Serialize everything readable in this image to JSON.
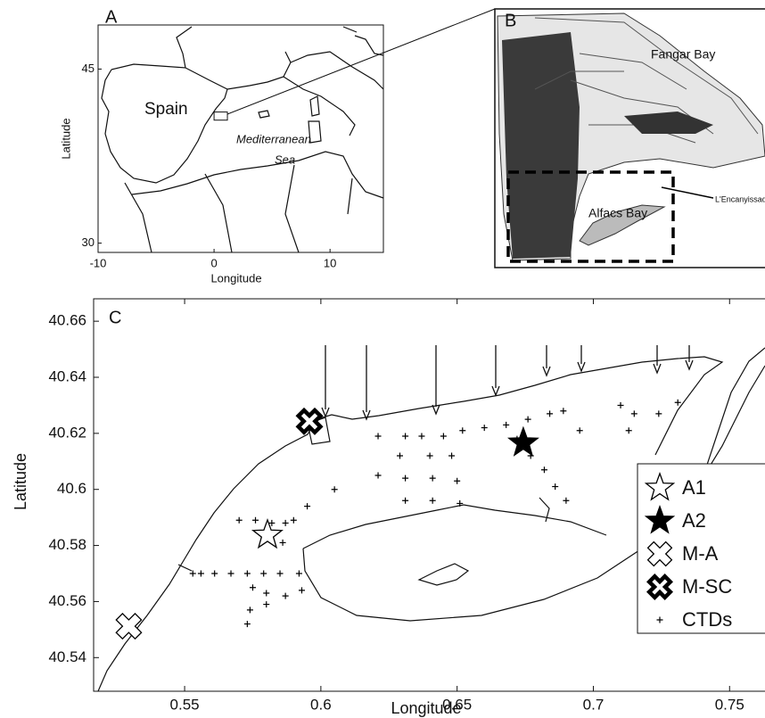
{
  "chart_data": [
    {
      "type": "map",
      "label": "A",
      "xlabel": "Longitude",
      "ylabel": "Latitude",
      "xlim": [
        -10,
        14.6
      ],
      "ylim": [
        29.2,
        48.8
      ],
      "xticks": [
        -10,
        0,
        10
      ],
      "yticks": [
        30,
        45
      ],
      "annotations": [
        "Spain",
        "Mediterranean",
        "Sea"
      ],
      "inset_box": {
        "x": [
          0,
          1.15
        ],
        "y": [
          40.6,
          41.3
        ]
      }
    },
    {
      "type": "scatter",
      "label": "C",
      "xlabel": "Longitude",
      "ylabel": "Latitude",
      "xlim": [
        0.5166,
        0.763
      ],
      "ylim": [
        40.528,
        40.668
      ],
      "xticks": [
        0.55,
        0.6,
        0.65,
        0.7,
        0.75
      ],
      "yticks": [
        40.54,
        40.56,
        40.58,
        40.6,
        40.62,
        40.64,
        40.66
      ],
      "series": [
        {
          "name": "A1",
          "marker": "star",
          "color": "#ffffff",
          "x": [
            0.5804
          ],
          "y": [
            40.5837
          ]
        },
        {
          "name": "A2",
          "marker": "star",
          "color": "#000000",
          "x": [
            0.6743
          ],
          "y": [
            40.6166
          ]
        },
        {
          "name": "M-A",
          "marker": "cross",
          "color": "#ffffff",
          "x": [
            0.5295
          ],
          "y": [
            40.5512
          ]
        },
        {
          "name": "M-SC",
          "marker": "bold-cross",
          "color": "#ffffff",
          "x": [
            0.5958
          ],
          "y": [
            40.6243
          ]
        },
        {
          "name": "CTDs",
          "marker": "plus",
          "color": "#000000",
          "x": [
            0.621,
            0.631,
            0.637,
            0.645,
            0.652,
            0.66,
            0.668,
            0.676,
            0.684,
            0.689,
            0.71,
            0.715,
            0.724,
            0.731,
            0.695,
            0.713,
            0.629,
            0.64,
            0.648,
            0.631,
            0.641,
            0.65,
            0.631,
            0.641,
            0.651,
            0.672,
            0.677,
            0.682,
            0.686,
            0.69,
            0.621,
            0.605,
            0.595,
            0.587,
            0.57,
            0.576,
            0.582,
            0.59,
            0.586,
            0.553,
            0.556,
            0.561,
            0.567,
            0.573,
            0.579,
            0.585,
            0.592,
            0.575,
            0.58,
            0.587,
            0.593,
            0.574,
            0.58,
            0.573
          ],
          "y": [
            40.619,
            40.619,
            40.619,
            40.619,
            40.621,
            40.622,
            40.623,
            40.625,
            40.627,
            40.628,
            40.63,
            40.627,
            40.627,
            40.631,
            40.621,
            40.621,
            40.612,
            40.612,
            40.612,
            40.604,
            40.604,
            40.603,
            40.596,
            40.596,
            40.595,
            40.618,
            40.612,
            40.607,
            40.601,
            40.596,
            40.605,
            40.6,
            40.594,
            40.588,
            40.589,
            40.589,
            40.588,
            40.589,
            40.581,
            40.57,
            40.57,
            40.57,
            40.57,
            40.57,
            40.57,
            40.57,
            40.57,
            40.565,
            40.563,
            40.562,
            40.564,
            40.557,
            40.559,
            40.552
          ]
        }
      ]
    }
  ],
  "inset_b": {
    "label": "B",
    "places": [
      "Fangar Bay",
      "Alfacs Bay",
      "L'Encanyissada"
    ]
  }
}
